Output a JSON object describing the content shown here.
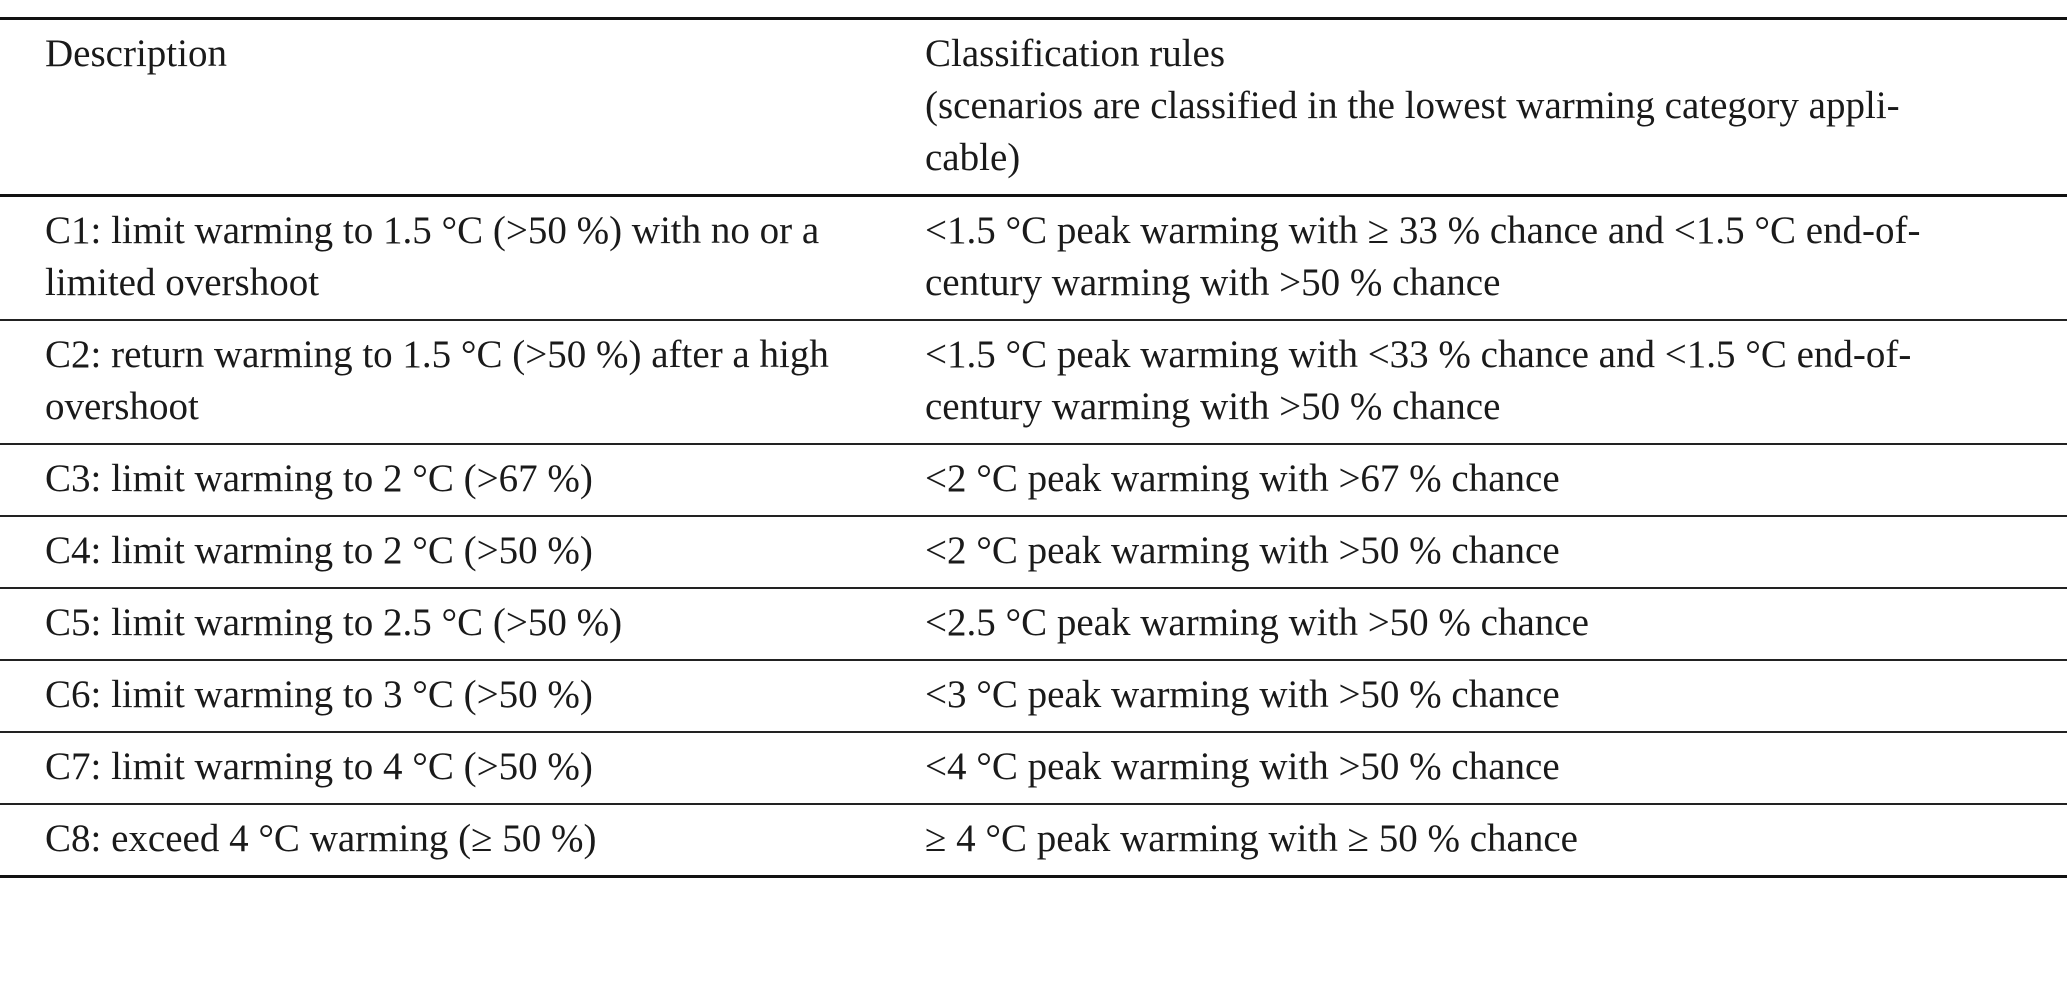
{
  "table": {
    "header": {
      "description": "Description",
      "rules_title": "Classification rules",
      "rules_note": "(scenarios are classified in the lowest warming category appli-",
      "rules_note_cont": "cable)"
    },
    "rows": [
      {
        "description": "C1: limit warming to 1.5 °C (>50 %) with no or a limited overshoot",
        "rule": "<1.5 °C peak warming with ≥ 33 % chance and <1.5 °C end-of-century warming with >50 % chance"
      },
      {
        "description": "C2: return warming to 1.5 °C (>50 %) after a high overshoot",
        "rule": "<1.5 °C peak warming with <33 % chance and <1.5 °C end-of-century warming with >50 % chance"
      },
      {
        "description": "C3: limit warming to 2 °C (>67 %)",
        "rule": "<2 °C peak warming with >67 % chance"
      },
      {
        "description": "C4: limit warming to 2 °C (>50 %)",
        "rule": "<2 °C peak warming with >50 % chance"
      },
      {
        "description": "C5: limit warming to 2.5 °C (>50 %)",
        "rule": "<2.5 °C peak warming with >50 % chance"
      },
      {
        "description": "C6: limit warming to 3 °C (>50 %)",
        "rule": "<3 °C peak warming with >50 % chance"
      },
      {
        "description": "C7: limit warming to 4 °C (>50 %)",
        "rule": "<4 °C peak warming with >50 % chance"
      },
      {
        "description": "C8: exceed 4 °C warming (≥ 50 %)",
        "rule": "≥ 4 °C peak warming with ≥ 50 % chance"
      }
    ]
  }
}
